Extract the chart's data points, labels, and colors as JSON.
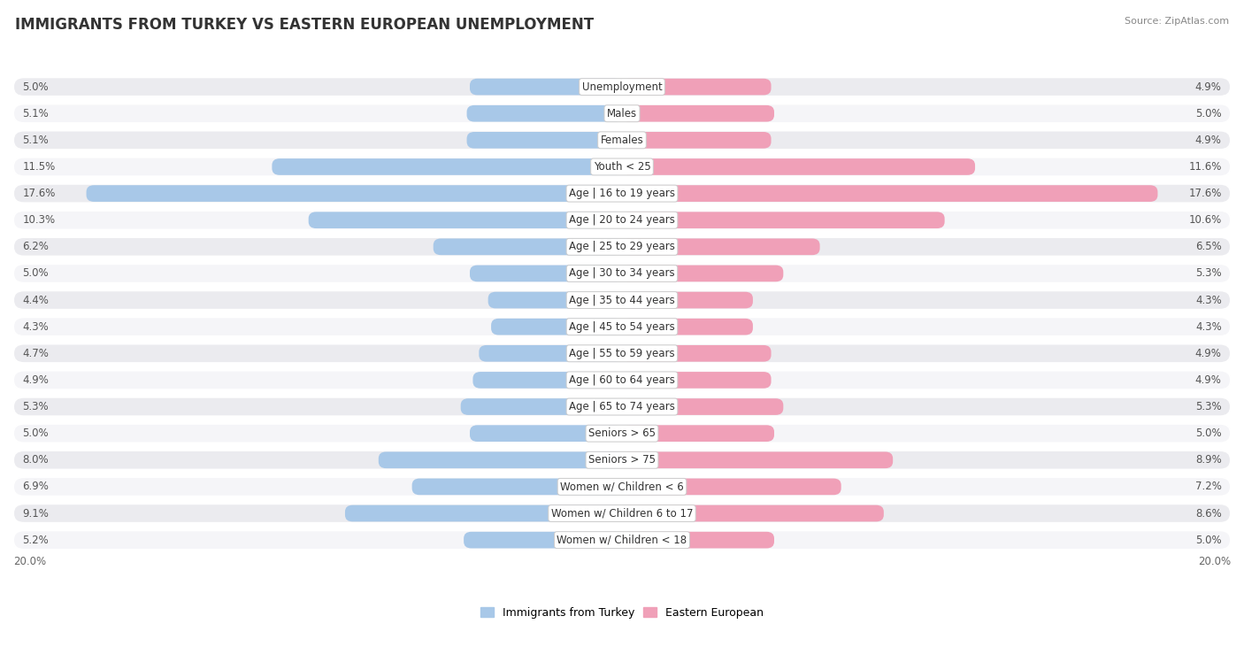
{
  "title": "IMMIGRANTS FROM TURKEY VS EASTERN EUROPEAN UNEMPLOYMENT",
  "source": "Source: ZipAtlas.com",
  "categories": [
    "Unemployment",
    "Males",
    "Females",
    "Youth < 25",
    "Age | 16 to 19 years",
    "Age | 20 to 24 years",
    "Age | 25 to 29 years",
    "Age | 30 to 34 years",
    "Age | 35 to 44 years",
    "Age | 45 to 54 years",
    "Age | 55 to 59 years",
    "Age | 60 to 64 years",
    "Age | 65 to 74 years",
    "Seniors > 65",
    "Seniors > 75",
    "Women w/ Children < 6",
    "Women w/ Children 6 to 17",
    "Women w/ Children < 18"
  ],
  "left_values": [
    5.0,
    5.1,
    5.1,
    11.5,
    17.6,
    10.3,
    6.2,
    5.0,
    4.4,
    4.3,
    4.7,
    4.9,
    5.3,
    5.0,
    8.0,
    6.9,
    9.1,
    5.2
  ],
  "right_values": [
    4.9,
    5.0,
    4.9,
    11.6,
    17.6,
    10.6,
    6.5,
    5.3,
    4.3,
    4.3,
    4.9,
    4.9,
    5.3,
    5.0,
    8.9,
    7.2,
    8.6,
    5.0
  ],
  "left_color": "#a8c8e8",
  "right_color": "#f0a0b8",
  "row_bg_color": "#e8e8ec",
  "row_bg_colors": [
    "#ebebef",
    "#f5f5f8"
  ],
  "max_val": 20.0,
  "label_fontsize": 8.5,
  "title_fontsize": 12,
  "source_fontsize": 8,
  "legend_left": "Immigrants from Turkey",
  "legend_right": "Eastern European"
}
